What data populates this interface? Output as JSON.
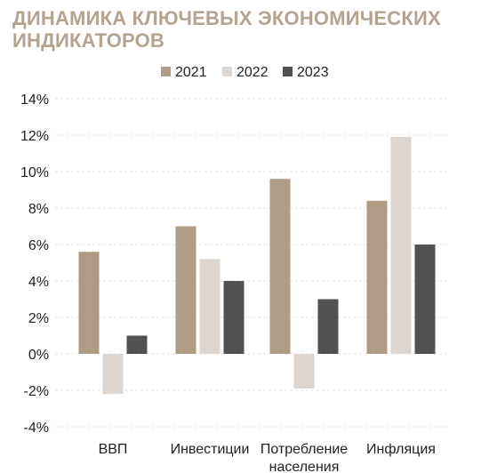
{
  "title": "ДИНАМИКА КЛЮЧЕВЫХ ЭКОНОМИЧЕСКИХ ИНДИКАТОРОВ",
  "chart_data": {
    "type": "bar",
    "title": "ДИНАМИКА КЛЮЧЕВЫХ ЭКОНОМИЧЕСКИХ ИНДИКАТОРОВ",
    "categories": [
      [
        "ВВП"
      ],
      [
        "Инвестиции"
      ],
      [
        "Потребление",
        "населения"
      ],
      [
        "Инфляция"
      ]
    ],
    "series": [
      {
        "name": "2021",
        "color": "#ae9c84",
        "values": [
          5.6,
          7.0,
          9.6,
          8.4
        ]
      },
      {
        "name": "2022",
        "color": "#ddd5cf",
        "values": [
          -2.2,
          5.2,
          -1.9,
          11.9
        ]
      },
      {
        "name": "2023",
        "color": "#4f5153",
        "values": [
          1.0,
          4.0,
          3.0,
          6.0
        ]
      }
    ],
    "ylim": [
      -4,
      14
    ],
    "yticks": [
      -4,
      -2,
      0,
      2,
      4,
      6,
      8,
      10,
      12,
      14
    ],
    "ytick_labels": [
      "-4%",
      "-2%",
      "0%",
      "2%",
      "4%",
      "6%",
      "8%",
      "10%",
      "12%",
      "14%"
    ],
    "grid": true,
    "legend": "top-center",
    "xlabel": "",
    "ylabel": ""
  }
}
